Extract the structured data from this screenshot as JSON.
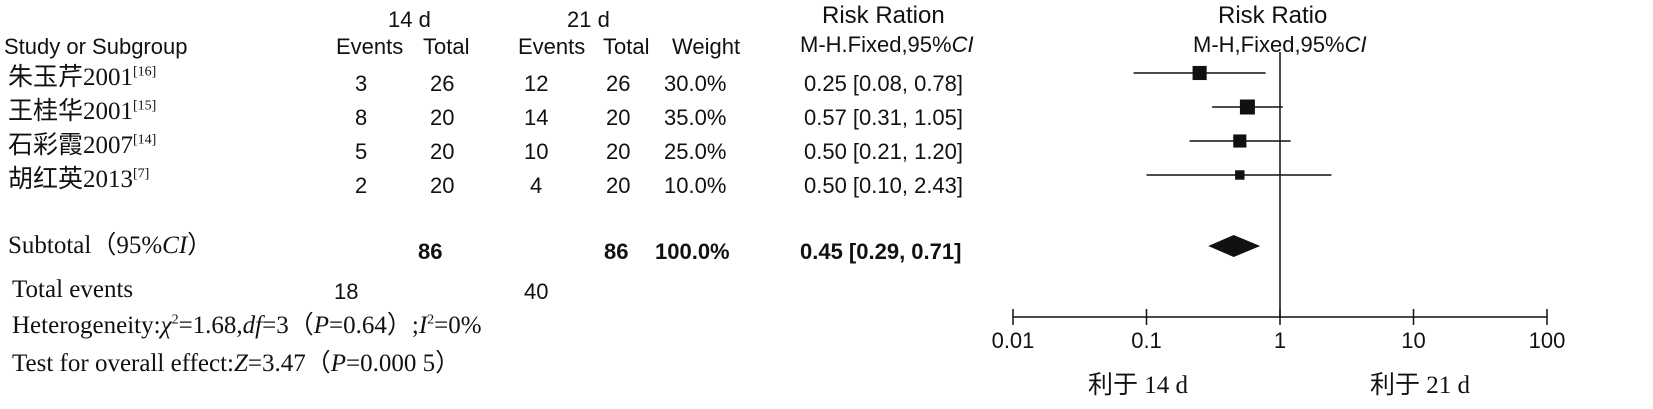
{
  "header": {
    "group1": "14 d",
    "group2": "21 d",
    "study_col": "Study or Subgroup",
    "events": "Events",
    "total": "Total",
    "weight": "Weight",
    "rr_col_title": "Risk Ration",
    "rr_col_method": "M-H.Fixed,95%",
    "ci_italic": "CI",
    "plot_title": "Risk Ratio",
    "plot_method": "M-H,Fixed,95%"
  },
  "studies": [
    {
      "name": "朱玉芹2001",
      "ref": "[16]",
      "e1": "3",
      "t1": "26",
      "e2": "12",
      "t2": "26",
      "weight": "30.0%",
      "rr_text": "0.25 [0.08, 0.78]"
    },
    {
      "name": "王桂华2001",
      "ref": "[15]",
      "e1": "8",
      "t1": "20",
      "e2": "14",
      "t2": "20",
      "weight": "35.0%",
      "rr_text": "0.57 [0.31, 1.05]"
    },
    {
      "name": "石彩霞2007",
      "ref": "[14]",
      "e1": "5",
      "t1": "20",
      "e2": "10",
      "t2": "20",
      "weight": "25.0%",
      "rr_text": "0.50 [0.21, 1.20]"
    },
    {
      "name": "胡红英2013",
      "ref": "[7]",
      "e1": "2",
      "t1": "20",
      "e2": "4",
      "t2": "20",
      "weight": "10.0%",
      "rr_text": "0.50 [0.10, 2.43]"
    }
  ],
  "subtotal": {
    "label": "Subtotal（95%",
    "ci_italic": "CI",
    "close": "）",
    "t1": "86",
    "t2": "86",
    "weight": "100.0%",
    "rr_text": "0.45 [0.29, 0.71]"
  },
  "total_events": {
    "label": "Total events",
    "e1": "18",
    "e2": "40"
  },
  "heterogeneity": {
    "prefix": "Heterogeneity:",
    "chi": "χ",
    "sup2": "2",
    "chi_val": "=1.68,",
    "df": "df",
    "df_val": "=3（",
    "p": "P",
    "p_val": "=0.64）;",
    "i": "I",
    "sup2b": "2",
    "i_val": "=0%"
  },
  "overall": {
    "prefix": "Test for overall effect:",
    "z": "Z",
    "z_val": "=3.47（",
    "p": "P",
    "p_val": "=0.000 5）"
  },
  "axis_labels": {
    "favours_left": "利于 14 d",
    "favours_right": "利于 21 d"
  },
  "chart_data": {
    "type": "forest",
    "scale": "log",
    "xlim": [
      0.01,
      100
    ],
    "ticks": [
      0.01,
      0.1,
      1,
      10,
      100
    ],
    "tick_labels": [
      "0.01",
      "0.1",
      "1",
      "10",
      "100"
    ],
    "reference_line": 1,
    "studies": [
      {
        "rr": 0.25,
        "lo": 0.08,
        "hi": 0.78,
        "weight": 30.0
      },
      {
        "rr": 0.57,
        "lo": 0.31,
        "hi": 1.05,
        "weight": 35.0
      },
      {
        "rr": 0.5,
        "lo": 0.21,
        "hi": 1.2,
        "weight": 25.0
      },
      {
        "rr": 0.5,
        "lo": 0.1,
        "hi": 2.43,
        "weight": 10.0
      }
    ],
    "pooled": {
      "rr": 0.45,
      "lo": 0.29,
      "hi": 0.71
    }
  },
  "colors": {
    "ink": "#111111"
  }
}
